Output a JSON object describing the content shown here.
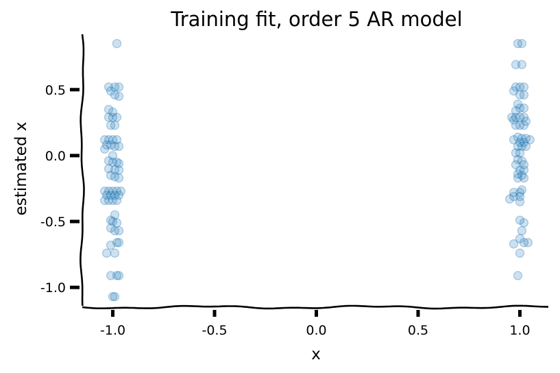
{
  "chart_data": {
    "type": "scatter",
    "title": "Training fit, order 5 AR model",
    "xlabel": "x",
    "ylabel": "estimated x",
    "xlim": [
      -1.15,
      1.15
    ],
    "ylim": [
      -1.15,
      0.92
    ],
    "x_ticks": [
      -1.0,
      -0.5,
      0.0,
      0.5,
      1.0
    ],
    "x_tick_labels": [
      "-1.0",
      "-0.5",
      "0.0",
      "0.5",
      "1.0"
    ],
    "y_ticks": [
      -1.0,
      -0.5,
      0.0,
      0.5
    ],
    "y_tick_labels": [
      "-1.0",
      "-0.5",
      "0.0",
      "0.5"
    ],
    "grid": false,
    "marker_color": "#1f77b4",
    "marker_alpha": 0.22,
    "series": [
      {
        "points": [
          [
            -0.98,
            0.85
          ],
          [
            -1.02,
            0.52
          ],
          [
            -0.99,
            0.52
          ],
          [
            -0.97,
            0.52
          ],
          [
            -1.01,
            0.49
          ],
          [
            -0.99,
            0.46
          ],
          [
            -0.97,
            0.45
          ],
          [
            -1.02,
            0.35
          ],
          [
            -1.0,
            0.33
          ],
          [
            -1.02,
            0.29
          ],
          [
            -1.0,
            0.29
          ],
          [
            -0.98,
            0.29
          ],
          [
            -1.01,
            0.23
          ],
          [
            -0.99,
            0.23
          ],
          [
            -1.04,
            0.12
          ],
          [
            -1.02,
            0.12
          ],
          [
            -1.0,
            0.12
          ],
          [
            -0.98,
            0.12
          ],
          [
            -1.03,
            0.08
          ],
          [
            -1.01,
            0.08
          ],
          [
            -0.99,
            0.07
          ],
          [
            -0.97,
            0.07
          ],
          [
            -1.04,
            0.05
          ],
          [
            -1.0,
            0.0
          ],
          [
            -1.02,
            -0.04
          ],
          [
            -1.0,
            -0.05
          ],
          [
            -0.98,
            -0.05
          ],
          [
            -0.97,
            -0.06
          ],
          [
            -1.02,
            -0.1
          ],
          [
            -0.99,
            -0.11
          ],
          [
            -0.97,
            -0.11
          ],
          [
            -1.01,
            -0.15
          ],
          [
            -0.99,
            -0.16
          ],
          [
            -0.97,
            -0.17
          ],
          [
            -1.04,
            -0.27
          ],
          [
            -1.02,
            -0.27
          ],
          [
            -1.0,
            -0.27
          ],
          [
            -0.98,
            -0.27
          ],
          [
            -0.96,
            -0.27
          ],
          [
            -1.03,
            -0.3
          ],
          [
            -1.01,
            -0.3
          ],
          [
            -0.99,
            -0.3
          ],
          [
            -0.97,
            -0.3
          ],
          [
            -1.04,
            -0.34
          ],
          [
            -1.02,
            -0.34
          ],
          [
            -1.0,
            -0.34
          ],
          [
            -0.98,
            -0.34
          ],
          [
            -0.99,
            -0.45
          ],
          [
            -1.01,
            -0.49
          ],
          [
            -1.0,
            -0.5
          ],
          [
            -0.98,
            -0.51
          ],
          [
            -1.01,
            -0.55
          ],
          [
            -0.99,
            -0.57
          ],
          [
            -0.97,
            -0.57
          ],
          [
            -0.98,
            -0.66
          ],
          [
            -0.97,
            -0.66
          ],
          [
            -1.01,
            -0.68
          ],
          [
            -1.03,
            -0.74
          ],
          [
            -0.99,
            -0.74
          ],
          [
            -1.01,
            -0.91
          ],
          [
            -0.98,
            -0.91
          ],
          [
            -0.97,
            -0.91
          ],
          [
            -1.0,
            -1.07
          ],
          [
            -0.99,
            -1.07
          ],
          [
            0.99,
            0.85
          ],
          [
            1.01,
            0.85
          ],
          [
            0.98,
            0.69
          ],
          [
            1.01,
            0.69
          ],
          [
            0.98,
            0.52
          ],
          [
            1.0,
            0.52
          ],
          [
            1.02,
            0.52
          ],
          [
            0.97,
            0.49
          ],
          [
            1.0,
            0.46
          ],
          [
            1.02,
            0.46
          ],
          [
            0.99,
            0.39
          ],
          [
            1.0,
            0.36
          ],
          [
            1.02,
            0.36
          ],
          [
            0.98,
            0.34
          ],
          [
            0.96,
            0.29
          ],
          [
            0.98,
            0.29
          ],
          [
            1.0,
            0.29
          ],
          [
            1.02,
            0.29
          ],
          [
            0.97,
            0.27
          ],
          [
            1.03,
            0.26
          ],
          [
            0.98,
            0.23
          ],
          [
            1.0,
            0.23
          ],
          [
            1.02,
            0.23
          ],
          [
            0.99,
            0.14
          ],
          [
            1.01,
            0.13
          ],
          [
            1.03,
            0.13
          ],
          [
            1.05,
            0.12
          ],
          [
            0.97,
            0.12
          ],
          [
            1.0,
            0.1
          ],
          [
            1.02,
            0.1
          ],
          [
            0.99,
            0.07
          ],
          [
            1.01,
            0.07
          ],
          [
            1.03,
            0.07
          ],
          [
            0.98,
            0.02
          ],
          [
            1.0,
            0.02
          ],
          [
            0.99,
            -0.03
          ],
          [
            1.01,
            -0.04
          ],
          [
            1.02,
            -0.07
          ],
          [
            0.98,
            -0.07
          ],
          [
            1.0,
            -0.11
          ],
          [
            1.02,
            -0.11
          ],
          [
            0.99,
            -0.14
          ],
          [
            1.01,
            -0.15
          ],
          [
            0.99,
            -0.17
          ],
          [
            1.02,
            -0.17
          ],
          [
            0.97,
            -0.28
          ],
          [
            1.0,
            -0.28
          ],
          [
            1.01,
            -0.26
          ],
          [
            0.97,
            -0.31
          ],
          [
            1.0,
            -0.31
          ],
          [
            0.95,
            -0.33
          ],
          [
            1.0,
            -0.35
          ],
          [
            1.0,
            -0.49
          ],
          [
            1.02,
            -0.51
          ],
          [
            1.01,
            -0.57
          ],
          [
            1.0,
            -0.63
          ],
          [
            1.02,
            -0.66
          ],
          [
            1.04,
            -0.66
          ],
          [
            0.97,
            -0.67
          ],
          [
            1.0,
            -0.74
          ],
          [
            0.99,
            -0.91
          ]
        ]
      }
    ]
  }
}
